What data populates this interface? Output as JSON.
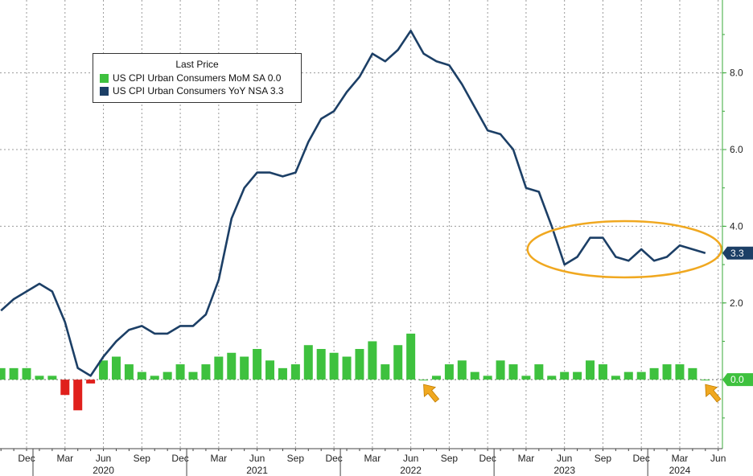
{
  "chart_data": {
    "type": "bar+line",
    "legend": {
      "title": "Last Price",
      "placement": "top-left",
      "entries": [
        {
          "label": "US CPI Urban Consumers MoM SA  0.0",
          "color": "#3ec13e"
        },
        {
          "label": "US CPI Urban Consumers YoY NSA 3.3",
          "color": "#1c3f66"
        }
      ]
    },
    "x_months": [
      "2019-10",
      "2019-11",
      "2019-12",
      "2020-01",
      "2020-02",
      "2020-03",
      "2020-04",
      "2020-05",
      "2020-06",
      "2020-07",
      "2020-08",
      "2020-09",
      "2020-10",
      "2020-11",
      "2020-12",
      "2021-01",
      "2021-02",
      "2021-03",
      "2021-04",
      "2021-05",
      "2021-06",
      "2021-07",
      "2021-08",
      "2021-09",
      "2021-10",
      "2021-11",
      "2021-12",
      "2022-01",
      "2022-02",
      "2022-03",
      "2022-04",
      "2022-05",
      "2022-06",
      "2022-07",
      "2022-08",
      "2022-09",
      "2022-10",
      "2022-11",
      "2022-12",
      "2023-01",
      "2023-02",
      "2023-03",
      "2023-04",
      "2023-05",
      "2023-06",
      "2023-07",
      "2023-08",
      "2023-09",
      "2023-10",
      "2023-11",
      "2023-12",
      "2024-01",
      "2024-02",
      "2024-03",
      "2024-04",
      "2024-05"
    ],
    "series": [
      {
        "name": "US CPI Urban Consumers MoM SA",
        "type": "bar",
        "values": [
          0.3,
          0.3,
          0.3,
          0.1,
          0.1,
          -0.4,
          -0.8,
          -0.1,
          0.5,
          0.6,
          0.4,
          0.2,
          0.1,
          0.2,
          0.4,
          0.2,
          0.4,
          0.6,
          0.7,
          0.6,
          0.8,
          0.5,
          0.3,
          0.4,
          0.9,
          0.8,
          0.7,
          0.6,
          0.8,
          1.0,
          0.4,
          0.9,
          1.2,
          0.0,
          0.1,
          0.4,
          0.5,
          0.2,
          0.1,
          0.5,
          0.4,
          0.1,
          0.4,
          0.1,
          0.2,
          0.2,
          0.5,
          0.4,
          0.1,
          0.2,
          0.2,
          0.3,
          0.4,
          0.4,
          0.3,
          0.0
        ]
      },
      {
        "name": "US CPI Urban Consumers YoY NSA",
        "type": "line",
        "values": [
          1.8,
          2.1,
          2.3,
          2.5,
          2.3,
          1.5,
          0.3,
          0.1,
          0.6,
          1.0,
          1.3,
          1.4,
          1.2,
          1.2,
          1.4,
          1.4,
          1.7,
          2.6,
          4.2,
          5.0,
          5.4,
          5.4,
          5.3,
          5.4,
          6.2,
          6.8,
          7.0,
          7.5,
          7.9,
          8.5,
          8.3,
          8.6,
          9.1,
          8.5,
          8.3,
          8.2,
          7.7,
          7.1,
          6.5,
          6.4,
          6.0,
          5.0,
          4.9,
          4.0,
          3.0,
          3.2,
          3.7,
          3.7,
          3.2,
          3.1,
          3.4,
          3.1,
          3.2,
          3.5,
          3.4,
          3.3
        ]
      }
    ],
    "ylim": [
      -1.8,
      9.9
    ],
    "y_ticks": [
      "2.0",
      "4.0",
      "6.0",
      "8.0"
    ],
    "y_tick_values": [
      2,
      4,
      6,
      8
    ],
    "x_tick_labels": [
      {
        "label": "Dec",
        "month": "2019-12"
      },
      {
        "label": "Mar",
        "month": "2020-03"
      },
      {
        "label": "Jun",
        "month": "2020-06"
      },
      {
        "label": "Sep",
        "month": "2020-09"
      },
      {
        "label": "Dec",
        "month": "2020-12"
      },
      {
        "label": "Mar",
        "month": "2021-03"
      },
      {
        "label": "Jun",
        "month": "2021-06"
      },
      {
        "label": "Sep",
        "month": "2021-09"
      },
      {
        "label": "Dec",
        "month": "2021-12"
      },
      {
        "label": "Mar",
        "month": "2022-03"
      },
      {
        "label": "Jun",
        "month": "2022-06"
      },
      {
        "label": "Sep",
        "month": "2022-09"
      },
      {
        "label": "Dec",
        "month": "2022-12"
      },
      {
        "label": "Mar",
        "month": "2023-03"
      },
      {
        "label": "Jun",
        "month": "2023-06"
      },
      {
        "label": "Sep",
        "month": "2023-09"
      },
      {
        "label": "Dec",
        "month": "2023-12"
      },
      {
        "label": "Mar",
        "month": "2024-03"
      },
      {
        "label": "Jun",
        "month": "2024-06"
      }
    ],
    "year_labels": [
      {
        "label": "2020",
        "month": "2020-06"
      },
      {
        "label": "2021",
        "month": "2021-06"
      },
      {
        "label": "2022",
        "month": "2022-06"
      },
      {
        "label": "2023",
        "month": "2023-06"
      },
      {
        "label": "2024",
        "month": "2024-03"
      }
    ],
    "last_value_badges": [
      {
        "label": "3.3",
        "value": 3.3,
        "color": "#1c3f66"
      },
      {
        "label": "0.0",
        "value": 0.0,
        "color": "#3ec13e"
      }
    ],
    "annotations": {
      "highlight_ellipse": {
        "from_month": "2023-05",
        "to_month": "2024-05",
        "center_value": 3.4,
        "color": "#f0a820"
      },
      "arrows": [
        {
          "month": "2022-07",
          "value": 0.0,
          "color": "#f0a820"
        },
        {
          "month": "2024-05",
          "value": 0.0,
          "color": "#f0a820"
        }
      ]
    },
    "colors": {
      "positive_bar": "#3ec13e",
      "negative_bar": "#e0201c",
      "line": "#1c3f66",
      "axis": "#3aa83a"
    },
    "grid": true
  }
}
